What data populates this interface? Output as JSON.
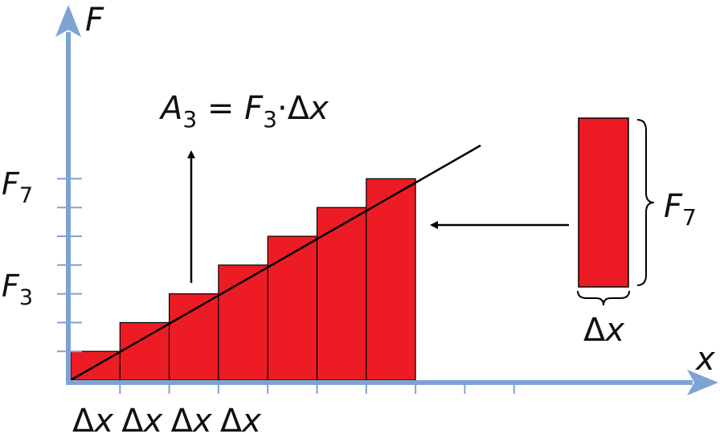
{
  "colors": {
    "axis": "#7fa2d4",
    "bar": "#ed1c24",
    "line": "#000000"
  },
  "labels": {
    "y_axis": "F",
    "x_axis": "x",
    "f7": "F",
    "f7_sub": "7",
    "f3": "F",
    "f3_sub": "3",
    "formula_a": "A",
    "formula_a_sub": "3",
    "formula_eq": " = ",
    "formula_f": "F",
    "formula_f_sub": "3",
    "formula_dot": "·",
    "formula_delta": "Δ",
    "formula_x": "x",
    "bar_height": "F",
    "bar_height_sub": "7",
    "bar_width_delta": "Δ",
    "bar_width_x": "x",
    "dx_label_delta": "Δ",
    "dx_label_x": "x"
  },
  "diagram": {
    "steps": [
      1,
      2,
      3,
      4,
      5,
      6,
      7
    ],
    "x_ticks": 9,
    "y_ticks": 7,
    "dx_labels_count": 4
  }
}
